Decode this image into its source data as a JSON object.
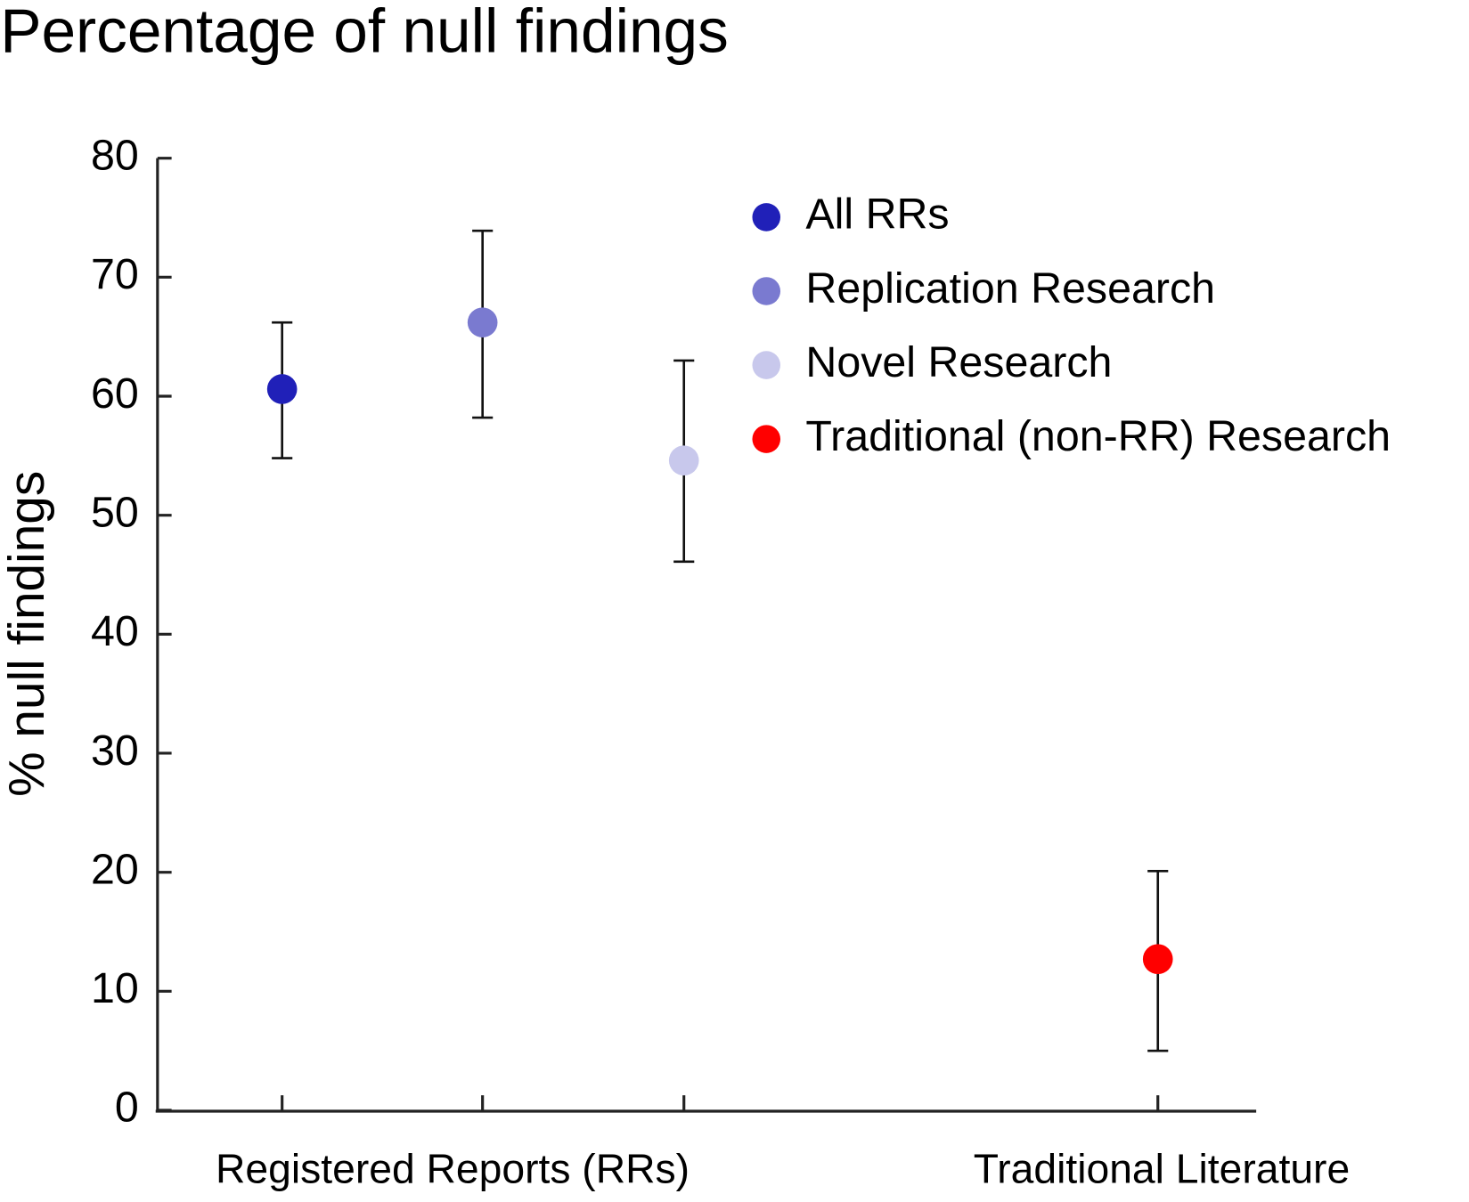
{
  "chart_data": {
    "type": "errorbar",
    "title": "Percentage of null findings",
    "ylabel": "% null findings",
    "groups": [
      "Registered Reports (RRs)",
      "Traditional Literature"
    ],
    "series": [
      {
        "name": "All RRs",
        "color": "#2020b8",
        "values": [
          60.6
        ],
        "lower": [
          54.8
        ],
        "upper": [
          66.2
        ]
      },
      {
        "name": "Replication Research",
        "color": "#7a7ad0",
        "values": [
          66.2
        ],
        "lower": [
          58.2
        ],
        "upper": [
          73.9
        ]
      },
      {
        "name": "Novel Research",
        "color": "#c8c8ec",
        "values": [
          54.6
        ],
        "lower": [
          46.1
        ],
        "upper": [
          63.0
        ]
      },
      {
        "name": "Traditional (non-RR) Research",
        "color": "#ff0000",
        "values": [
          12.7
        ],
        "lower": [
          5.0
        ],
        "upper": [
          20.1
        ]
      }
    ],
    "ylim": [
      0,
      80
    ],
    "yticks": [
      0,
      10,
      20,
      30,
      40,
      50,
      60,
      70,
      80
    ],
    "legend": "upper right"
  }
}
